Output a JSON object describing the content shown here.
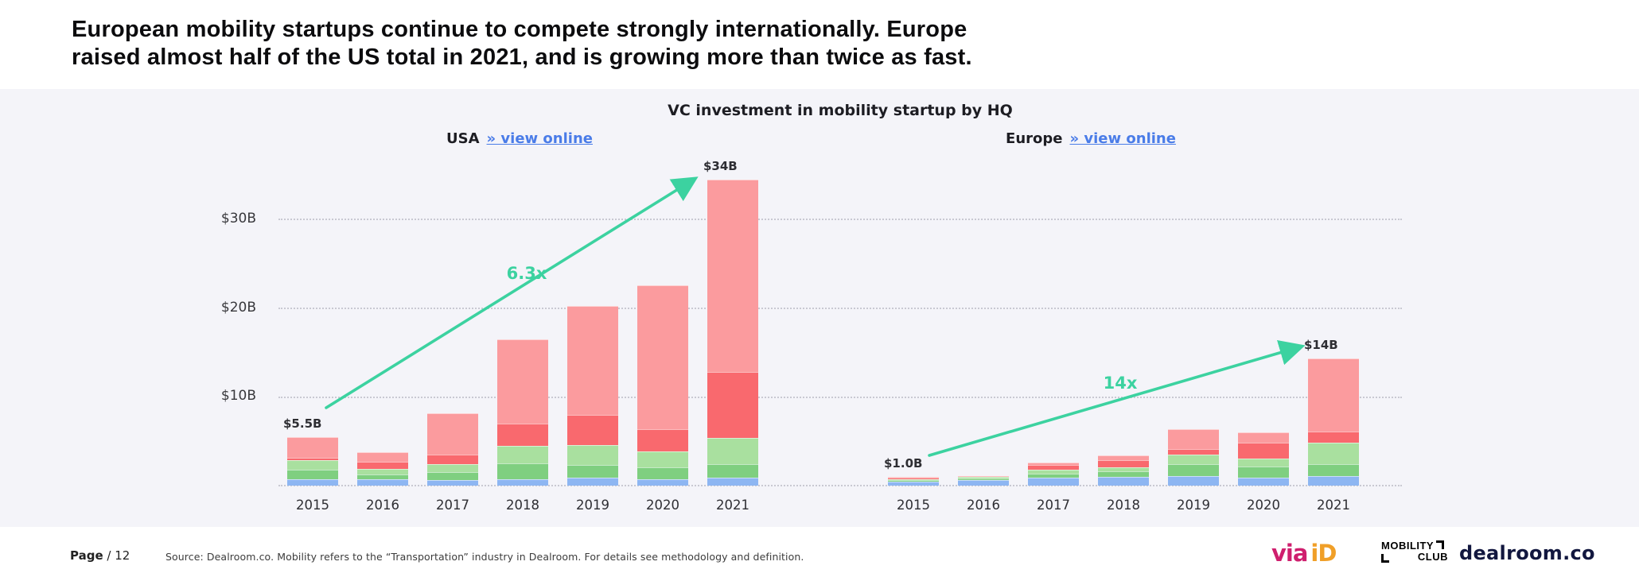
{
  "page": {
    "title_line1": "European mobility startups continue to compete strongly internationally. Europe",
    "title_line2": "raised almost half of the US total in 2021, and is growing more than twice as fast.",
    "footer": {
      "page_label": "Page",
      "page_number": "/ 12",
      "source_text": "Source: Dealroom.co.  Mobility refers to the “Transportation” industry in Dealroom. For details see methodology and definition.",
      "logos": {
        "viaid_via": "via",
        "viaid_id": "iD",
        "mobility_line1": "MOBILITY",
        "mobility_line2": "CLUB",
        "dealroom": "dealroom.co"
      }
    }
  },
  "chart": {
    "title": "VC investment in mobility startup by HQ",
    "y_axis": {
      "ticks": [
        "$30B",
        "$20B",
        "$10B"
      ]
    },
    "palette": {
      "accent_green": "#3cd2a0",
      "link_blue": "#4a7ce8",
      "panel_background": "#f4f4f9"
    }
  },
  "chart_data": [
    {
      "type": "bar",
      "id": "usa",
      "region_label": "USA",
      "link_label": "» view online",
      "growth_label": "6.3x",
      "categories": [
        "2015",
        "2016",
        "2017",
        "2018",
        "2019",
        "2020",
        "2021"
      ],
      "series": [
        {
          "name": "segment-blue",
          "color": "#8db6f2",
          "values": [
            0.7,
            0.7,
            0.6,
            0.7,
            0.9,
            0.7,
            0.9
          ]
        },
        {
          "name": "segment-green-dark",
          "color": "#7fcf80",
          "values": [
            1.1,
            0.6,
            0.9,
            1.8,
            1.4,
            1.4,
            1.5
          ]
        },
        {
          "name": "segment-green-light",
          "color": "#a9e09f",
          "values": [
            1.1,
            0.6,
            0.9,
            2.0,
            2.3,
            1.8,
            3.0
          ]
        },
        {
          "name": "segment-red",
          "color": "#f9696e",
          "values": [
            0.25,
            0.8,
            1.1,
            2.5,
            3.4,
            2.5,
            7.4
          ]
        },
        {
          "name": "segment-pink",
          "color": "#fb9b9e",
          "values": [
            2.35,
            1.1,
            4.7,
            9.5,
            12.3,
            16.2,
            21.7
          ]
        }
      ],
      "totals": [
        5.5,
        3.8,
        8.2,
        16.5,
        20.3,
        22.6,
        34.5
      ],
      "callouts": [
        {
          "category": "2015",
          "text": "$5.5B"
        },
        {
          "category": "2021",
          "text": "$34B"
        }
      ],
      "ylim": [
        0,
        35
      ],
      "grid": "dotted-horizontal",
      "legend": false
    },
    {
      "type": "bar",
      "id": "europe",
      "region_label": "Europe",
      "link_label": "» view online",
      "growth_label": "14x",
      "categories": [
        "2015",
        "2016",
        "2017",
        "2018",
        "2019",
        "2020",
        "2021"
      ],
      "series": [
        {
          "name": "segment-blue",
          "color": "#8db6f2",
          "values": [
            0.45,
            0.6,
            0.9,
            1.0,
            1.1,
            0.9,
            1.1
          ]
        },
        {
          "name": "segment-green-dark",
          "color": "#7fcf80",
          "values": [
            0.15,
            0.2,
            0.45,
            0.6,
            1.3,
            1.25,
            1.3
          ]
        },
        {
          "name": "segment-green-light",
          "color": "#a9e09f",
          "values": [
            0.1,
            0.15,
            0.45,
            0.5,
            1.1,
            0.9,
            2.4
          ]
        },
        {
          "name": "segment-red",
          "color": "#f9696e",
          "values": [
            0.2,
            0.1,
            0.5,
            0.8,
            0.6,
            1.8,
            1.3
          ]
        },
        {
          "name": "segment-pink",
          "color": "#fb9b9e",
          "values": [
            0.1,
            0.05,
            0.3,
            0.5,
            2.3,
            1.15,
            8.2
          ]
        }
      ],
      "totals": [
        1.0,
        1.1,
        2.6,
        3.4,
        6.4,
        6.0,
        14.3
      ],
      "callouts": [
        {
          "category": "2015",
          "text": "$1.0B"
        },
        {
          "category": "2021",
          "text": "$14B"
        }
      ],
      "ylim": [
        0,
        35
      ],
      "grid": "dotted-horizontal",
      "legend": false
    }
  ]
}
